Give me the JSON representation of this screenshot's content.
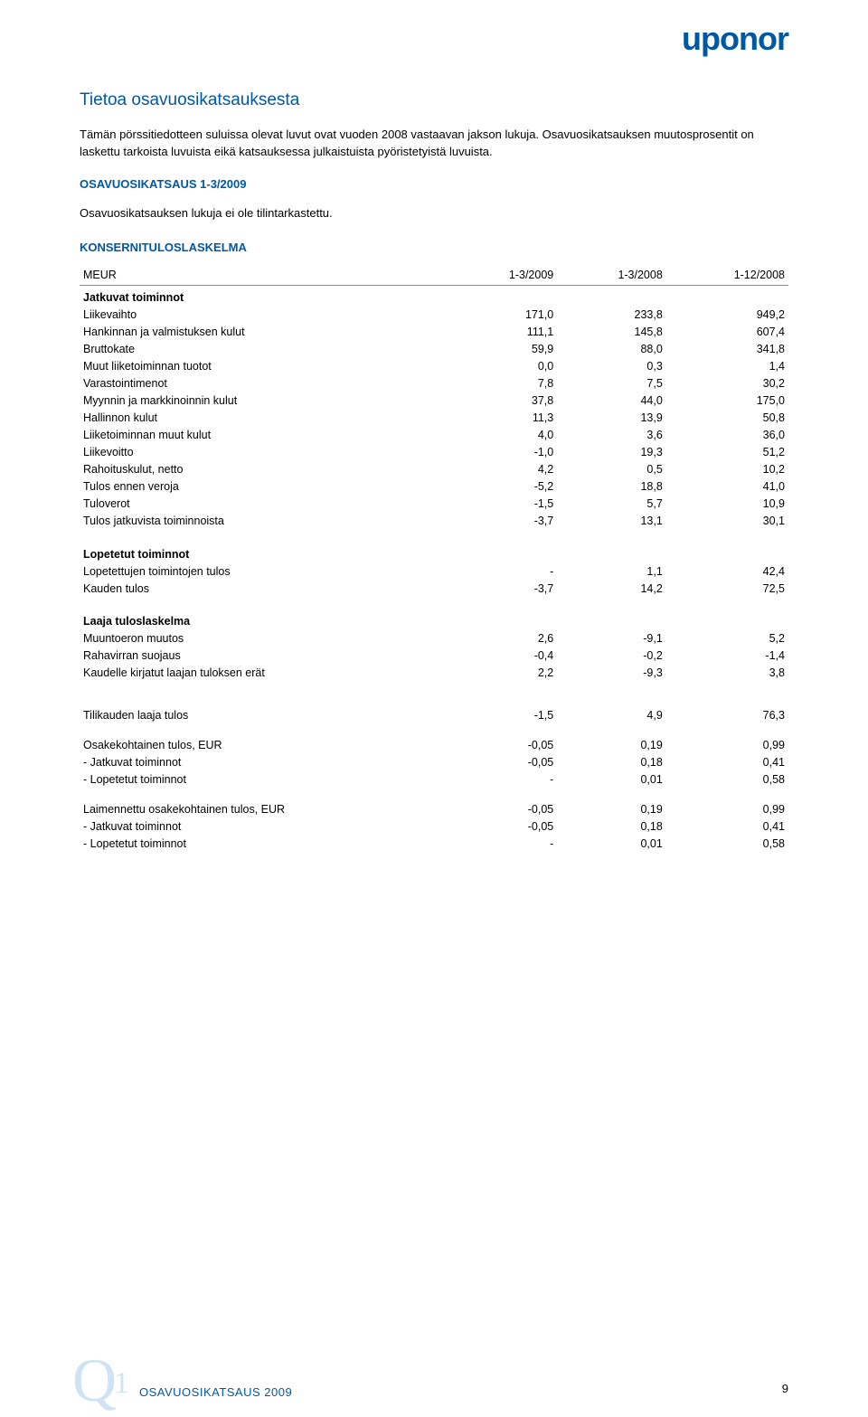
{
  "brand": {
    "logo_text": "uponor"
  },
  "header": {
    "section_title": "Tietoa osavuosikatsauksesta",
    "intro": "Tämän pörssitiedotteen suluissa olevat luvut ovat vuoden 2008 vastaavan jakson lukuja. Osavuosikatsauksen muutosprosentit on laskettu tarkoista luvuista eikä katsauksessa julkaistuista pyöristetyistä luvuista.",
    "osavuosi_head": "OSAVUOSIKATSAUS 1-3/2009",
    "osavuosi_note": "Osavuosikatsauksen lukuja ei ole tilintarkastettu.",
    "konserni_head": "KONSERNITULOSLASKELMA"
  },
  "table": {
    "col_label": "MEUR",
    "cols": [
      "1-3/2009",
      "1-3/2008",
      "1-12/2008"
    ],
    "sections": [
      {
        "title": "Jatkuvat toiminnot",
        "rows": [
          {
            "l": "Liikevaihto",
            "v": [
              "171,0",
              "233,8",
              "949,2"
            ]
          },
          {
            "l": "Hankinnan ja valmistuksen kulut",
            "v": [
              "111,1",
              "145,8",
              "607,4"
            ]
          },
          {
            "l": "Bruttokate",
            "v": [
              "59,9",
              "88,0",
              "341,8"
            ]
          },
          {
            "l": "Muut liiketoiminnan tuotot",
            "v": [
              "0,0",
              "0,3",
              "1,4"
            ]
          },
          {
            "l": "Varastointimenot",
            "v": [
              "7,8",
              "7,5",
              "30,2"
            ]
          },
          {
            "l": "Myynnin ja markkinoinnin kulut",
            "v": [
              "37,8",
              "44,0",
              "175,0"
            ]
          },
          {
            "l": "Hallinnon kulut",
            "v": [
              "11,3",
              "13,9",
              "50,8"
            ]
          },
          {
            "l": "Liiketoiminnan muut kulut",
            "v": [
              "4,0",
              "3,6",
              "36,0"
            ]
          },
          {
            "l": "Liikevoitto",
            "v": [
              "-1,0",
              "19,3",
              "51,2"
            ]
          },
          {
            "l": "Rahoituskulut, netto",
            "v": [
              "4,2",
              "0,5",
              "10,2"
            ]
          },
          {
            "l": "Tulos ennen veroja",
            "v": [
              "-5,2",
              "18,8",
              "41,0"
            ]
          },
          {
            "l": "Tuloverot",
            "v": [
              "-1,5",
              "5,7",
              "10,9"
            ]
          },
          {
            "l": "Tulos jatkuvista toiminnoista",
            "v": [
              "-3,7",
              "13,1",
              "30,1"
            ]
          }
        ]
      },
      {
        "title": "Lopetetut toiminnot",
        "rows": [
          {
            "l": "Lopetettujen toimintojen tulos",
            "v": [
              "-",
              "1,1",
              "42,4"
            ]
          },
          {
            "l": "Kauden tulos",
            "v": [
              "-3,7",
              "14,2",
              "72,5"
            ]
          }
        ]
      },
      {
        "title": "Laaja tuloslaskelma",
        "rows": [
          {
            "l": "Muuntoeron muutos",
            "v": [
              "2,6",
              "-9,1",
              "5,2"
            ]
          },
          {
            "l": "Rahavirran suojaus",
            "v": [
              "-0,4",
              "-0,2",
              "-1,4"
            ]
          },
          {
            "l": "Kaudelle kirjatut laajan tuloksen erät",
            "v": [
              "2,2",
              "-9,3",
              "3,8"
            ]
          }
        ]
      },
      {
        "title": "",
        "rows": [
          {
            "l": "Tilikauden laaja tulos",
            "v": [
              "-1,5",
              "4,9",
              "76,3"
            ]
          }
        ]
      },
      {
        "title": "",
        "rows": [
          {
            "l": "Osakekohtainen tulos, EUR",
            "v": [
              "-0,05",
              "0,19",
              "0,99"
            ]
          },
          {
            "l": "- Jatkuvat toiminnot",
            "v": [
              "-0,05",
              "0,18",
              "0,41"
            ]
          },
          {
            "l": "- Lopetetut toiminnot",
            "v": [
              "-",
              "0,01",
              "0,58"
            ]
          }
        ]
      },
      {
        "title": "",
        "rows": [
          {
            "l": "Laimennettu osakekohtainen tulos, EUR",
            "v": [
              "-0,05",
              "0,19",
              "0,99"
            ]
          },
          {
            "l": "- Jatkuvat toiminnot",
            "v": [
              "-0,05",
              "0,18",
              "0,41"
            ]
          },
          {
            "l": "- Lopetetut toiminnot",
            "v": [
              "-",
              "0,01",
              "0,58"
            ]
          }
        ]
      }
    ]
  },
  "footer": {
    "q_big": "Q",
    "q_small": "1",
    "text": "OSAVUOSIKATSAUS 2009",
    "page_num": "9"
  },
  "colors": {
    "brand_blue": "#0058a3",
    "watermark": "#cfe4f2",
    "text": "#000000",
    "rule": "#888888"
  }
}
